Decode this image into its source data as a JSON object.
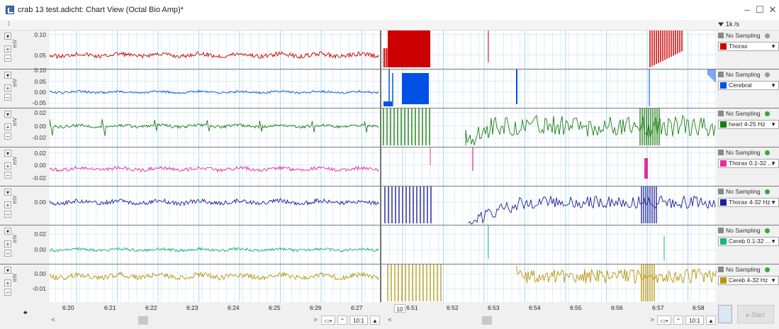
{
  "window": {
    "title": "crab 13 test.adicht: Chart View (Octal Bio Amp)*",
    "minimize": "–",
    "maximize": "☐",
    "close": "✕"
  },
  "toolbar": {
    "page_number": "1",
    "rate": "1k /s"
  },
  "channels": [
    {
      "name": "Thorax",
      "color": "#cc0000",
      "unit": "mV",
      "ticks": [
        "0.10",
        "0.05"
      ],
      "sampling": "No Sampling",
      "status": "grey"
    },
    {
      "name": "Cerebral",
      "color": "#0050e6",
      "unit": "mV",
      "ticks": [
        "0.10",
        "0.05",
        "0.00",
        "-0.05"
      ],
      "sampling": "No Sampling",
      "status": "grey"
    },
    {
      "name": "heart 4-25 Hz",
      "color": "#1d7d12",
      "unit": "mV",
      "ticks": [
        "0.02",
        "0.00",
        "-0.02"
      ],
      "sampling": "No Sampling",
      "status": "green"
    },
    {
      "name": "Thorax 0.1-32 ...",
      "color": "#e0309c",
      "unit": "mV",
      "ticks": [
        "0.02",
        "0.00",
        "-0.02"
      ],
      "sampling": "No Sampling",
      "status": "green"
    },
    {
      "name": "Thorax 4-32 Hz",
      "color": "#1e1e96",
      "unit": "mV",
      "ticks": [
        "0.00"
      ],
      "sampling": "No Sampling",
      "status": "green"
    },
    {
      "name": "Cereb 0.1-32 ...",
      "color": "#18b47a",
      "unit": "mV",
      "ticks": [
        "0.02",
        "0.00"
      ],
      "sampling": "No Sampling",
      "status": "green"
    },
    {
      "name": "Cereb 4-32 Hz",
      "color": "#b8960c",
      "unit": "mV",
      "ticks": [
        "0.00",
        "-0.01"
      ],
      "sampling": "No Sampling",
      "status": "green"
    }
  ],
  "time_axis": {
    "left": [
      "6:20",
      "6:21",
      "6:22",
      "6:23",
      "6:24",
      "6:25",
      "6:26",
      "6:27"
    ],
    "right": [
      "6:51",
      "6:52",
      "6:53",
      "6:54",
      "6:55",
      "6:56",
      "6:57",
      "6:58"
    ],
    "marker": "10"
  },
  "scroll": {
    "zoom_left": "10:1",
    "zoom_right": "10:1"
  },
  "start_label": "Start",
  "colors": {
    "grey_dot": "#9a9a9a",
    "green_dot": "#3aa53a"
  }
}
